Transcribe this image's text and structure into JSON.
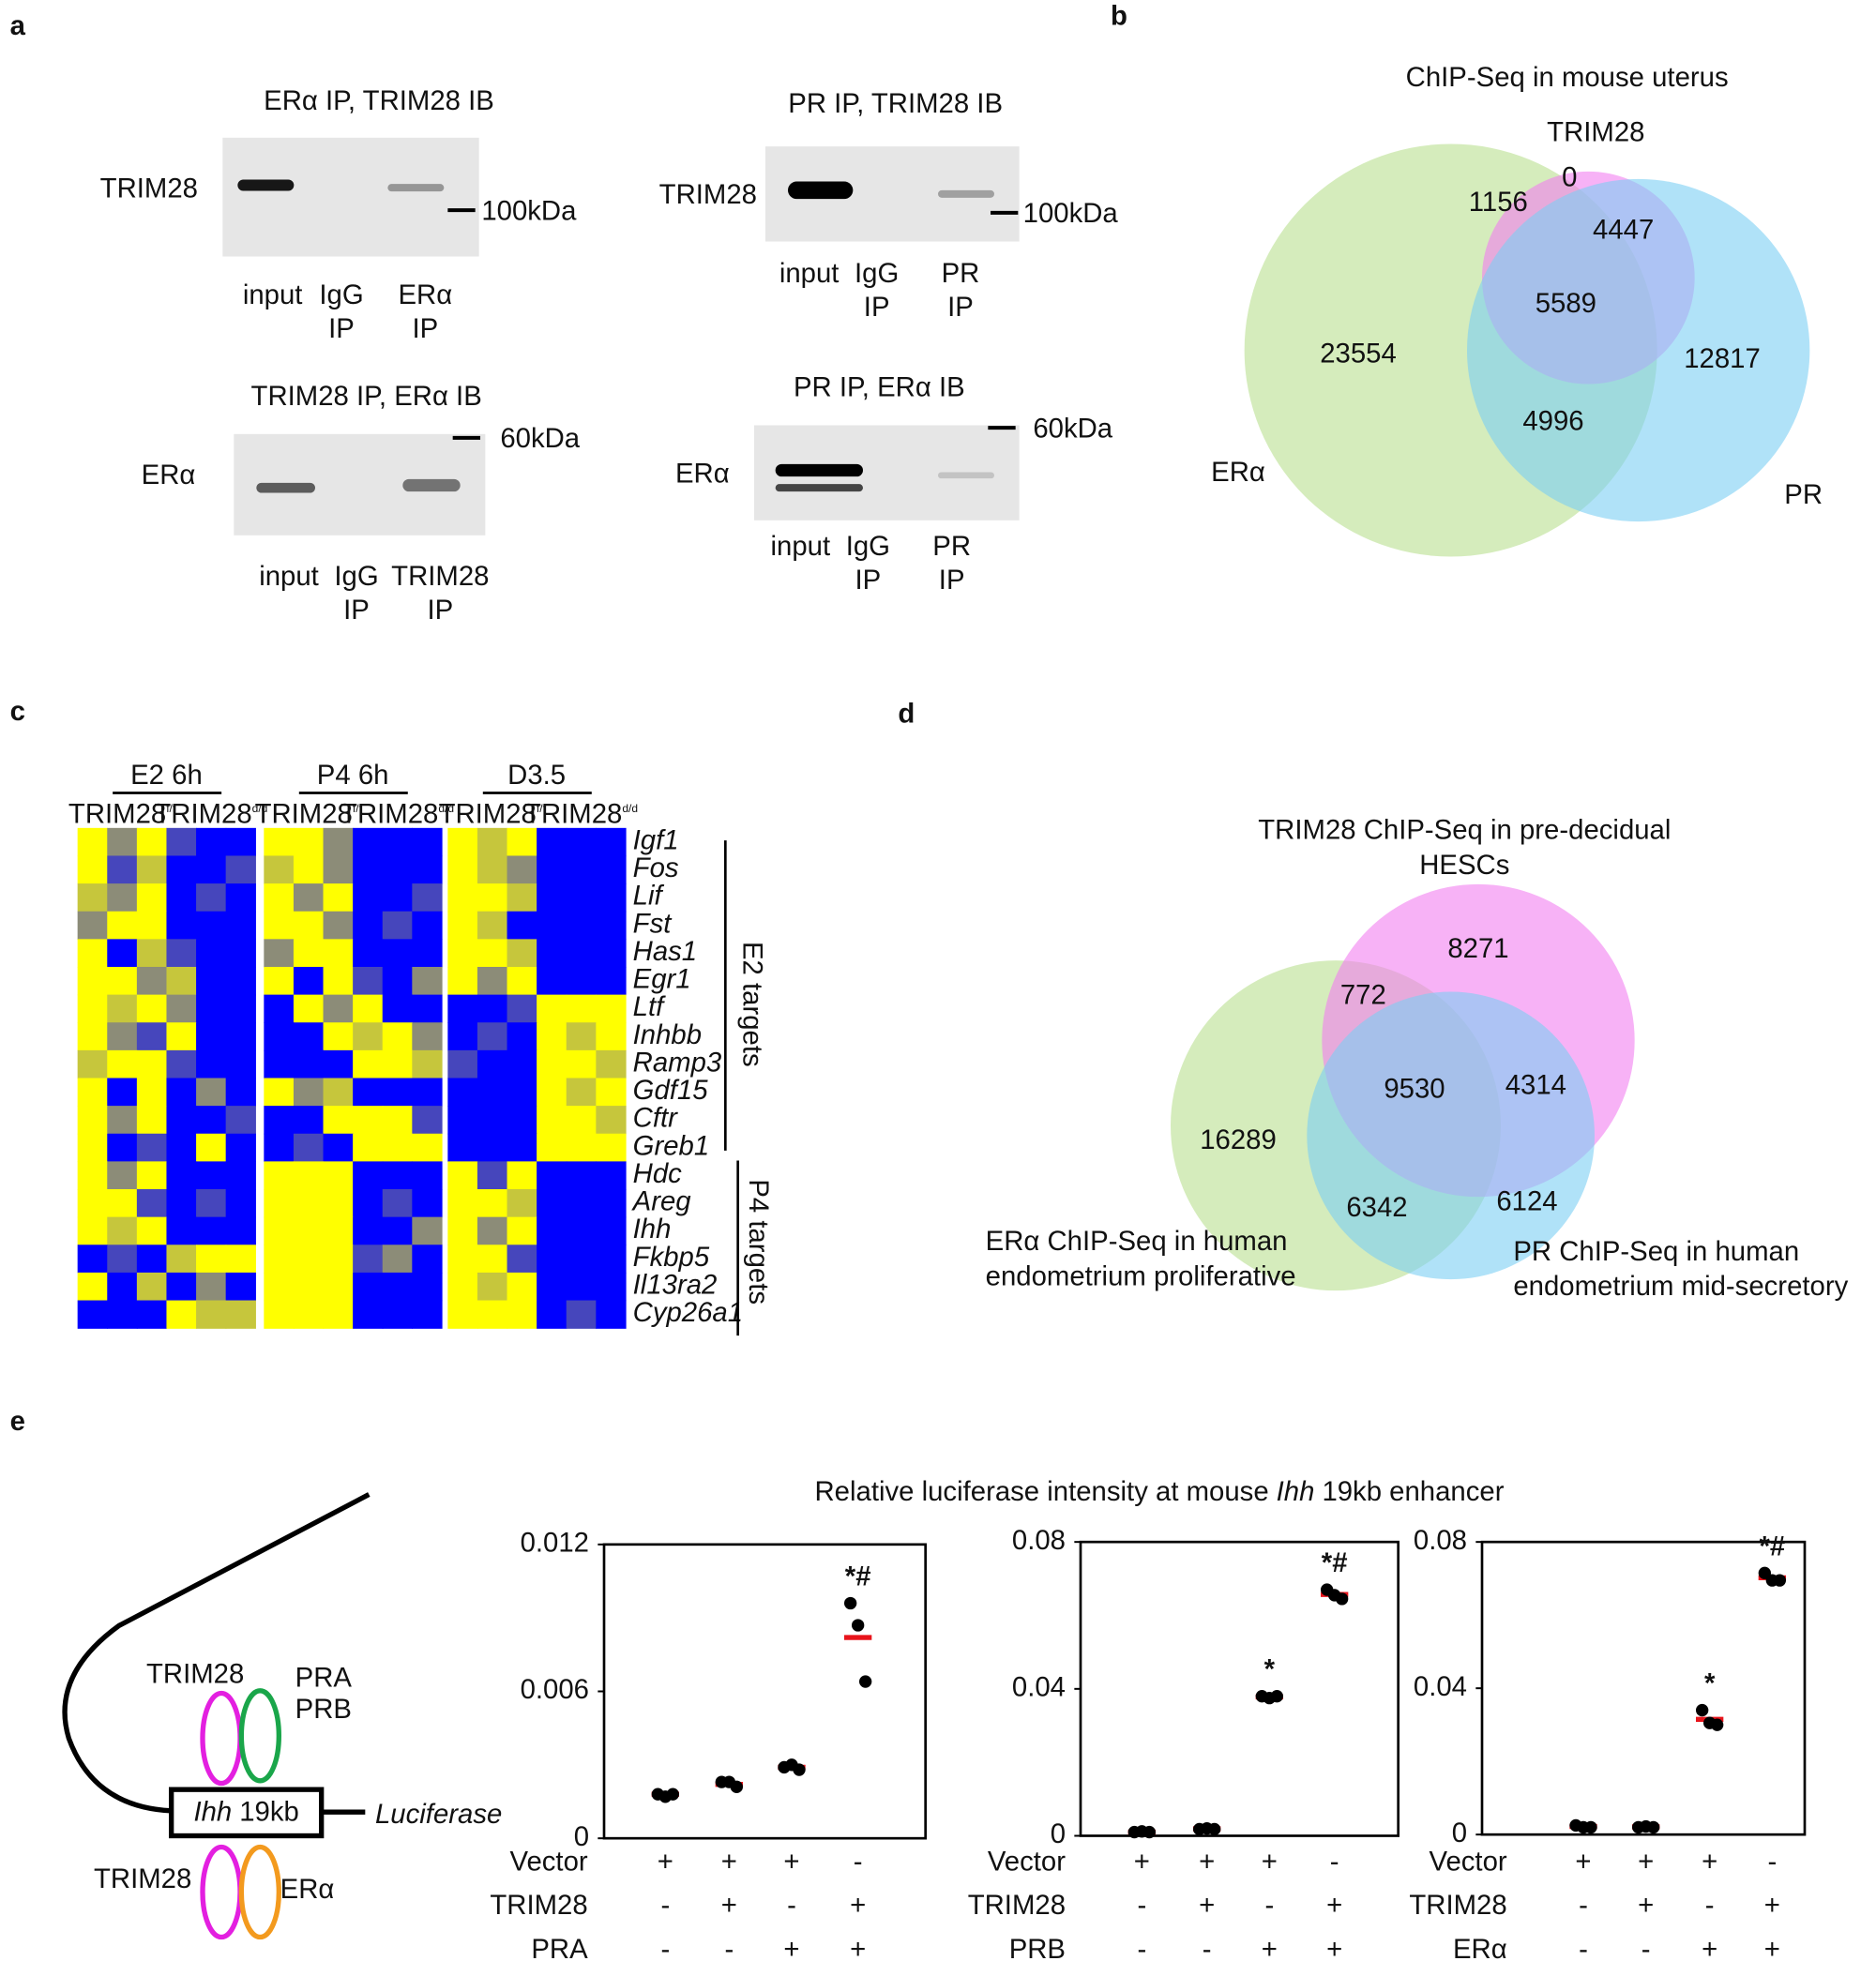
{
  "panel_labels": [
    "a",
    "b",
    "c",
    "d",
    "e"
  ],
  "blots": [
    {
      "title": "ERα IP, TRIM28 IB",
      "protein": "TRIM28",
      "marker": "100kDa",
      "lanes": [
        [
          "input"
        ],
        [
          "IgG",
          "IP"
        ],
        [
          "ERα",
          "IP"
        ]
      ]
    },
    {
      "title": "PR IP, TRIM28 IB",
      "protein": "TRIM28",
      "marker": "100kDa",
      "lanes": [
        [
          "input"
        ],
        [
          "IgG",
          "IP"
        ],
        [
          "PR",
          "IP"
        ]
      ]
    },
    {
      "title": "TRIM28 IP, ERα IB",
      "protein": "ERα",
      "marker": "60kDa",
      "lanes": [
        [
          "input"
        ],
        [
          "IgG",
          "IP"
        ],
        [
          "TRIM28",
          "IP"
        ]
      ]
    },
    {
      "title": "PR IP, ERα IB",
      "protein": "ERα",
      "marker": "60kDa",
      "lanes": [
        [
          "input"
        ],
        [
          "IgG",
          "IP"
        ],
        [
          "PR",
          "IP"
        ]
      ]
    }
  ],
  "venn_b": {
    "title": "ChIP-Seq in mouse uterus",
    "sets": [
      "TRIM28",
      "ERα",
      "PR"
    ],
    "regions": [
      0,
      1156,
      4447,
      5589,
      23554,
      12817,
      4996
    ]
  },
  "venn_d": {
    "title": [
      "TRIM28 ChIP-Seq in pre-decidual",
      "HESCs"
    ],
    "sets": [
      [
        "ERα ChIP-Seq in human",
        "endometrium proliferative"
      ],
      [
        "PR ChIP-Seq in human",
        "endometrium mid-secretory"
      ]
    ],
    "regions": [
      8271,
      772,
      9530,
      4314,
      16289,
      6342,
      6124
    ]
  },
  "schematic": {
    "enhancer": [
      "Ihh",
      "19kb"
    ],
    "reporter": "Luciferase",
    "factors": [
      "TRIM28",
      "PRA",
      "PRB",
      "TRIM28",
      "ERα"
    ]
  },
  "panel_e_title": [
    "Relative luciferase intensity at mouse",
    "Ihh",
    "19kb enhancer"
  ],
  "chart_data": [
    {
      "type": "heatmap",
      "groups": [
        "E2 6h",
        "P4 6h",
        "D3.5"
      ],
      "genotypes": [
        {
          "base": "TRIM28",
          "sup": "f/f"
        },
        {
          "base": "TRIM28",
          "sup": "d/d"
        }
      ],
      "gene_sets": [
        "E2 targets",
        "P4 targets"
      ],
      "rows": [
        "Igf1",
        "Fos",
        "Lif",
        "Fst",
        "Has1",
        "Egr1",
        "Ltf",
        "Inhbb",
        "Ramp3",
        "Gdf15",
        "Cftr",
        "Greb1",
        "Hdc",
        "Areg",
        "Ihh",
        "Fkbp5",
        "Il13ra2",
        "Cyp26a1"
      ],
      "colors": {
        "low": "#0000ff",
        "mid": "#8c8c78",
        "high": "#ffff00"
      },
      "values": [
        [
          1,
          0,
          1,
          -0.5,
          -1,
          -1,
          1,
          1,
          0,
          -1,
          -1,
          -1,
          1,
          0.5,
          1,
          -1,
          -1,
          -1
        ],
        [
          1,
          -0.5,
          0.5,
          -1,
          -1,
          -0.5,
          0.5,
          1,
          0,
          -1,
          -1,
          -1,
          1,
          0.5,
          0,
          -1,
          -1,
          -1
        ],
        [
          0.5,
          0,
          1,
          -1,
          -0.5,
          -1,
          1,
          0,
          1,
          -1,
          -1,
          -0.5,
          1,
          1,
          0.5,
          -1,
          -1,
          -1
        ],
        [
          0,
          1,
          1,
          -1,
          -1,
          -1,
          1,
          1,
          0,
          -1,
          -0.5,
          -1,
          1,
          0.5,
          -1,
          -1,
          -1,
          -1
        ],
        [
          1,
          -1,
          0.5,
          -0.5,
          -1,
          -1,
          0,
          1,
          1,
          -1,
          -1,
          -1,
          1,
          1,
          0.5,
          -1,
          -1,
          -1
        ],
        [
          1,
          1,
          0,
          0.5,
          -1,
          -1,
          1,
          -1,
          1,
          -0.5,
          -1,
          0,
          1,
          0,
          1,
          -1,
          -1,
          -1
        ],
        [
          1,
          0.5,
          1,
          0,
          -1,
          -1,
          -1,
          1,
          0,
          1,
          -1,
          -1,
          -1,
          -1,
          -0.5,
          1,
          1,
          1
        ],
        [
          1,
          0,
          -0.5,
          1,
          -1,
          -1,
          -1,
          -1,
          1,
          0.5,
          1,
          0,
          -1,
          -0.5,
          -1,
          1,
          0.5,
          1
        ],
        [
          0.5,
          1,
          1,
          -0.5,
          -1,
          -1,
          -1,
          -1,
          -1,
          1,
          1,
          0.5,
          -0.5,
          -1,
          -1,
          1,
          1,
          0.5
        ],
        [
          1,
          -1,
          1,
          -1,
          0,
          -1,
          1,
          0,
          0.5,
          -1,
          -1,
          -1,
          -1,
          -1,
          -1,
          1,
          0.5,
          1
        ],
        [
          1,
          0,
          1,
          -1,
          -1,
          -0.5,
          -1,
          -1,
          1,
          1,
          1,
          -0.5,
          -1,
          -1,
          -1,
          1,
          1,
          0.5
        ],
        [
          1,
          -1,
          -0.5,
          -1,
          1,
          -1,
          -1,
          -0.5,
          -1,
          1,
          1,
          1,
          -1,
          -1,
          -1,
          1,
          1,
          1
        ],
        [
          1,
          0,
          1,
          -1,
          -1,
          -1,
          1,
          1,
          1,
          -1,
          -1,
          -1,
          1,
          -0.5,
          1,
          -1,
          -1,
          -1
        ],
        [
          1,
          1,
          -0.5,
          -1,
          -0.5,
          -1,
          1,
          1,
          1,
          -1,
          -0.5,
          -1,
          1,
          1,
          0.5,
          -1,
          -1,
          -1
        ],
        [
          1,
          0.5,
          1,
          -1,
          -1,
          -1,
          1,
          1,
          1,
          -1,
          -1,
          0,
          1,
          0,
          1,
          -1,
          -1,
          -1
        ],
        [
          -1,
          -0.5,
          -1,
          0.5,
          1,
          1,
          1,
          1,
          1,
          -0.5,
          0,
          -1,
          1,
          1,
          -0.5,
          -1,
          -1,
          -1
        ],
        [
          1,
          -1,
          0.5,
          -1,
          0,
          -1,
          1,
          1,
          1,
          -1,
          -1,
          -1,
          1,
          0.5,
          1,
          -1,
          -1,
          -1
        ],
        [
          -1,
          -1,
          -1,
          1,
          0.5,
          0.5,
          1,
          1,
          1,
          -1,
          -1,
          -1,
          1,
          1,
          1,
          -1,
          -0.5,
          -1
        ]
      ]
    },
    {
      "type": "dot",
      "ylim": [
        0,
        0.012
      ],
      "yticks": [
        0,
        0.006,
        0.012
      ],
      "point_color": "#000000",
      "mean_color": "#e8141b",
      "conditions": [
        {
          "name": "Vector",
          "values": [
            "+",
            "+",
            "+",
            "-"
          ]
        },
        {
          "name": "TRIM28",
          "values": [
            "-",
            "+",
            "-",
            "+"
          ]
        },
        {
          "name": "PRA",
          "values": [
            "-",
            "-",
            "+",
            "+"
          ]
        }
      ],
      "points": [
        [
          0.0018,
          0.0017,
          0.0018
        ],
        [
          0.0023,
          0.0023,
          0.0021
        ],
        [
          0.0029,
          0.003,
          0.0028
        ],
        [
          0.0096,
          0.0087,
          0.0064
        ]
      ],
      "means": [
        0.0018,
        0.0022,
        0.0029,
        0.0082
      ],
      "annotations": [
        null,
        null,
        null,
        "*#"
      ]
    },
    {
      "type": "dot",
      "ylim": [
        0,
        0.08
      ],
      "yticks": [
        0,
        0.04,
        0.08
      ],
      "point_color": "#000000",
      "mean_color": "#e8141b",
      "conditions": [
        {
          "name": "Vector",
          "values": [
            "+",
            "+",
            "+",
            "-"
          ]
        },
        {
          "name": "TRIM28",
          "values": [
            "-",
            "+",
            "-",
            "+"
          ]
        },
        {
          "name": "PRB",
          "values": [
            "-",
            "-",
            "+",
            "+"
          ]
        }
      ],
      "points": [
        [
          0.001,
          0.0012,
          0.001
        ],
        [
          0.0018,
          0.002,
          0.0018
        ],
        [
          0.038,
          0.0375,
          0.038
        ],
        [
          0.067,
          0.0655,
          0.0645
        ]
      ],
      "means": [
        0.001,
        0.0019,
        0.0378,
        0.0657
      ],
      "annotations": [
        null,
        null,
        "*",
        "*#"
      ]
    },
    {
      "type": "dot",
      "ylim": [
        0,
        0.08
      ],
      "yticks": [
        0,
        0.04,
        0.08
      ],
      "point_color": "#000000",
      "mean_color": "#e8141b",
      "conditions": [
        {
          "name": "Vector",
          "values": [
            "+",
            "+",
            "+",
            "-"
          ]
        },
        {
          "name": "TRIM28",
          "values": [
            "-",
            "+",
            "-",
            "+"
          ]
        },
        {
          "name": "ERα",
          "values": [
            "-",
            "-",
            "+",
            "+"
          ]
        }
      ],
      "points": [
        [
          0.0025,
          0.002,
          0.002
        ],
        [
          0.002,
          0.0022,
          0.002
        ],
        [
          0.034,
          0.0305,
          0.03
        ],
        [
          0.0715,
          0.0695,
          0.0695
        ]
      ],
      "means": [
        0.0022,
        0.0021,
        0.0315,
        0.0702
      ],
      "annotations": [
        null,
        null,
        "*",
        "*#"
      ]
    }
  ]
}
